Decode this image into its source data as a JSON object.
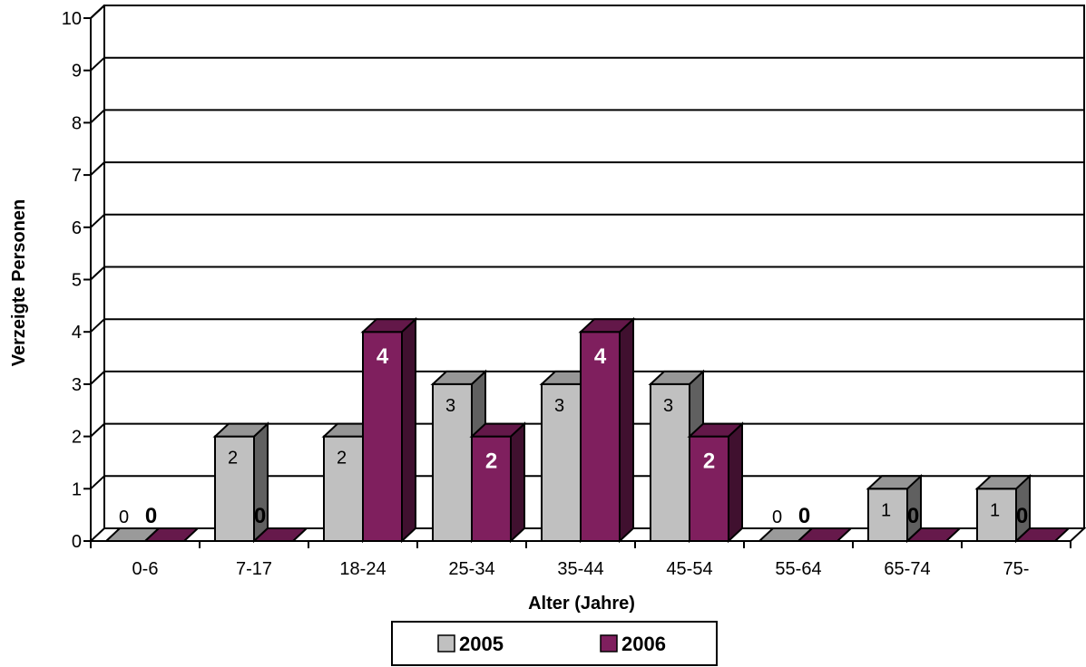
{
  "chart_data": {
    "type": "bar",
    "categories": [
      "0-6",
      "7-17",
      "18-24",
      "25-34",
      "35-44",
      "45-54",
      "55-64",
      "65-74",
      "75-"
    ],
    "series": [
      {
        "name": "2005",
        "values": [
          0,
          2,
          2,
          3,
          3,
          3,
          0,
          1,
          1
        ],
        "color": "#c0c0c0"
      },
      {
        "name": "2006",
        "values": [
          0,
          0,
          4,
          2,
          4,
          2,
          0,
          0,
          0
        ],
        "color": "#7f1f5e"
      }
    ],
    "xlabel": "Alter (Jahre)",
    "ylabel": "Verzeigte Personen",
    "ylim": [
      0,
      10
    ],
    "yticks": [
      0,
      1,
      2,
      3,
      4,
      5,
      6,
      7,
      8,
      9,
      10
    ],
    "grid": true,
    "legend": "bottom-center",
    "style": "3d-clustered"
  }
}
